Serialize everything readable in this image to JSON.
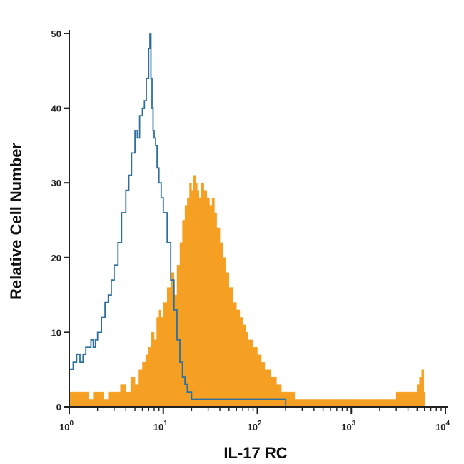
{
  "chart_data": {
    "type": "area",
    "xlabel": "IL-17 RC",
    "ylabel": "Relative Cell Number",
    "x_scale": "log",
    "xlim": [
      1,
      10000
    ],
    "ylim": [
      0,
      50
    ],
    "x_ticks": [
      {
        "value": 1,
        "base": "10",
        "exp": "0"
      },
      {
        "value": 10,
        "base": "10",
        "exp": "1"
      },
      {
        "value": 100,
        "base": "10",
        "exp": "2"
      },
      {
        "value": 1000,
        "base": "10",
        "exp": "3"
      },
      {
        "value": 10000,
        "base": "10",
        "exp": "4"
      }
    ],
    "y_ticks": [
      0,
      10,
      20,
      30,
      40,
      50
    ],
    "grid": false,
    "legend": "none",
    "colors": {
      "filled": "#f5a022",
      "control": "#2f6f9f",
      "axis": "#222222"
    },
    "series": [
      {
        "style": "filled-histogram",
        "color": "#f5a022",
        "x": [
          1.0,
          1.2,
          1.4,
          1.6,
          1.8,
          2.0,
          2.3,
          2.6,
          3.0,
          3.5,
          4.0,
          4.5,
          5.0,
          5.5,
          6.0,
          6.5,
          7.0,
          7.5,
          8.0,
          8.5,
          9.0,
          9.5,
          10,
          11,
          12,
          13,
          14,
          15,
          16,
          17,
          18,
          19,
          20,
          21,
          22,
          23,
          24,
          25,
          27,
          29,
          31,
          33,
          35,
          37,
          40,
          43,
          46,
          50,
          55,
          60,
          65,
          70,
          75,
          80,
          90,
          100,
          110,
          120,
          140,
          160,
          180,
          200,
          250,
          300,
          400,
          500,
          700,
          1000,
          1500,
          2000,
          2500,
          3000,
          3500,
          4000,
          4500,
          5000,
          5300,
          5600,
          5900,
          6000
        ],
        "values": [
          2,
          2,
          2,
          1,
          2,
          2,
          1,
          2,
          2,
          3,
          2,
          4,
          3,
          5,
          6,
          7,
          8,
          10,
          9,
          12,
          13,
          12,
          14,
          16,
          18,
          15,
          19,
          22,
          25,
          27,
          28,
          30,
          29,
          31,
          30,
          29,
          28,
          30,
          29,
          28,
          27,
          28,
          26,
          24,
          22,
          20,
          18,
          16,
          14,
          13,
          12,
          11,
          10,
          9,
          8,
          7,
          6,
          5,
          4,
          3,
          2,
          2,
          1,
          1,
          1,
          1,
          1,
          1,
          1,
          1,
          1,
          2,
          2,
          2,
          2,
          3,
          4,
          5,
          2,
          0
        ]
      },
      {
        "style": "outline-histogram",
        "color": "#2f6f9f",
        "x": [
          1.0,
          1.1,
          1.2,
          1.3,
          1.4,
          1.5,
          1.6,
          1.7,
          1.8,
          1.9,
          2.0,
          2.2,
          2.4,
          2.6,
          2.8,
          3.0,
          3.3,
          3.6,
          4.0,
          4.3,
          4.6,
          5.0,
          5.3,
          5.6,
          6.0,
          6.3,
          6.6,
          7.0,
          7.2,
          7.4,
          7.6,
          7.8,
          8.0,
          8.3,
          8.6,
          9.0,
          9.5,
          10,
          11,
          12,
          13,
          14,
          15,
          16,
          17,
          18,
          19,
          20,
          22,
          24,
          26,
          28,
          30,
          35,
          40,
          50,
          60,
          70,
          80,
          100,
          120,
          150,
          200,
          300,
          500,
          1000,
          2000,
          5000,
          10000
        ],
        "values": [
          5,
          6,
          7,
          6,
          7,
          8,
          8,
          9,
          8,
          9,
          10,
          12,
          14,
          15,
          17,
          19,
          22,
          26,
          29,
          31,
          34,
          37,
          36,
          39,
          40,
          41,
          44,
          48,
          50,
          44,
          40,
          37,
          36,
          35,
          32,
          30,
          28,
          26,
          22,
          17,
          13,
          9,
          6,
          4,
          3,
          2,
          2,
          1,
          1,
          1,
          1,
          1,
          1,
          1,
          1,
          1,
          1,
          1,
          1,
          1,
          1,
          1,
          0,
          0,
          0,
          0,
          0,
          0,
          0
        ]
      }
    ]
  }
}
